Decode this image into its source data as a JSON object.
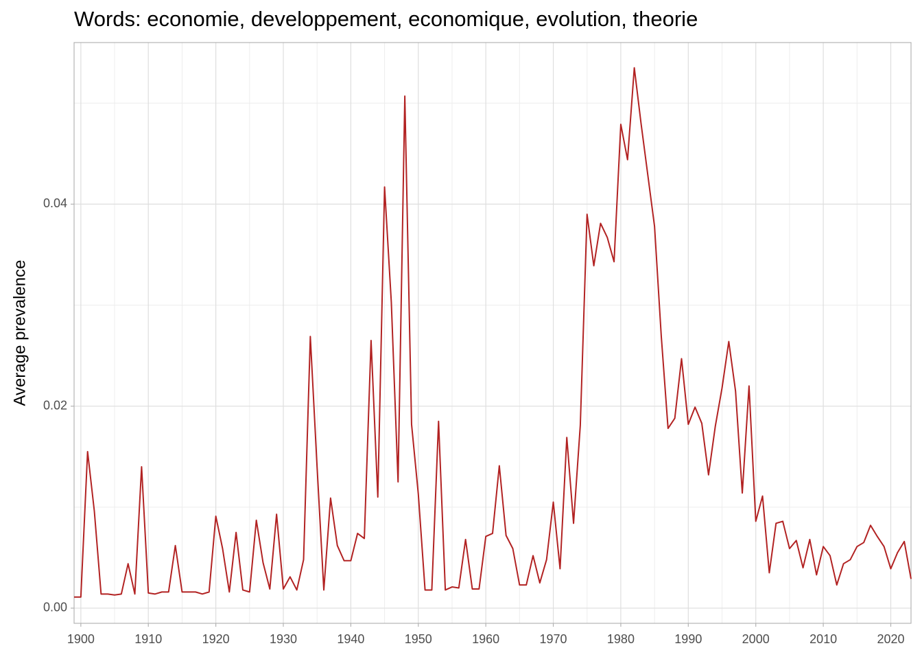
{
  "chart_data": {
    "type": "line",
    "title": "Words: economie, developpement, economique, evolution, theorie",
    "y_label": "Average prevalence",
    "x": [
      1899,
      1900,
      1901,
      1902,
      1903,
      1904,
      1905,
      1906,
      1907,
      1908,
      1909,
      1910,
      1911,
      1912,
      1913,
      1914,
      1915,
      1916,
      1917,
      1918,
      1919,
      1920,
      1921,
      1922,
      1923,
      1924,
      1925,
      1926,
      1927,
      1928,
      1929,
      1930,
      1931,
      1932,
      1933,
      1934,
      1935,
      1936,
      1937,
      1938,
      1939,
      1940,
      1941,
      1942,
      1943,
      1944,
      1945,
      1946,
      1947,
      1948,
      1949,
      1950,
      1951,
      1952,
      1953,
      1954,
      1955,
      1956,
      1957,
      1958,
      1959,
      1960,
      1961,
      1962,
      1963,
      1964,
      1965,
      1966,
      1967,
      1968,
      1969,
      1970,
      1971,
      1972,
      1973,
      1974,
      1975,
      1976,
      1977,
      1978,
      1979,
      1980,
      1981,
      1982,
      1983,
      1984,
      1985,
      1986,
      1987,
      1988,
      1989,
      1990,
      1991,
      1992,
      1993,
      1994,
      1995,
      1996,
      1997,
      1998,
      1999,
      2000,
      2001,
      2002,
      2003,
      2004,
      2005,
      2006,
      2007,
      2008,
      2009,
      2010,
      2011,
      2012,
      2013,
      2014,
      2015,
      2016,
      2017,
      2018,
      2019,
      2020,
      2021,
      2022,
      2023
    ],
    "series": [
      {
        "color": "#b22222",
        "values": [
          0.0011,
          0.0011,
          0.0155,
          0.0096,
          0.0014,
          0.0014,
          0.0013,
          0.0014,
          0.0044,
          0.0014,
          0.014,
          0.0015,
          0.0014,
          0.0016,
          0.0016,
          0.0062,
          0.0016,
          0.0016,
          0.0016,
          0.0014,
          0.0016,
          0.0091,
          0.0059,
          0.0016,
          0.0075,
          0.0018,
          0.0016,
          0.0087,
          0.0045,
          0.0019,
          0.0093,
          0.0019,
          0.0031,
          0.0018,
          0.0048,
          0.0269,
          0.014,
          0.0018,
          0.0109,
          0.0062,
          0.0047,
          0.0047,
          0.0074,
          0.0069,
          0.0265,
          0.011,
          0.0417,
          0.0303,
          0.0125,
          0.0507,
          0.0182,
          0.0113,
          0.0018,
          0.0018,
          0.0185,
          0.0018,
          0.0021,
          0.002,
          0.0068,
          0.0019,
          0.0019,
          0.0071,
          0.0074,
          0.0141,
          0.0072,
          0.0059,
          0.0023,
          0.0023,
          0.0052,
          0.0025,
          0.0048,
          0.0105,
          0.0039,
          0.0169,
          0.0084,
          0.0181,
          0.039,
          0.0339,
          0.0381,
          0.0367,
          0.0343,
          0.0479,
          0.0444,
          0.0535,
          0.048,
          0.0429,
          0.0378,
          0.0269,
          0.0178,
          0.0188,
          0.0247,
          0.0182,
          0.0199,
          0.0183,
          0.0132,
          0.018,
          0.0218,
          0.0264,
          0.0215,
          0.0114,
          0.022,
          0.0086,
          0.0111,
          0.0035,
          0.0084,
          0.0086,
          0.0059,
          0.0067,
          0.004,
          0.0068,
          0.0033,
          0.0061,
          0.0052,
          0.0023,
          0.0044,
          0.0048,
          0.0061,
          0.0065,
          0.0082,
          0.0071,
          0.0061,
          0.0039,
          0.0055,
          0.0066,
          0.0029
        ]
      }
    ],
    "xlim": [
      1899,
      2023
    ],
    "xticks": [
      1900,
      1910,
      1920,
      1930,
      1940,
      1950,
      1960,
      1970,
      1980,
      1990,
      2000,
      2010,
      2020
    ],
    "x_minor_ticks": [
      1905,
      1915,
      1925,
      1935,
      1945,
      1955,
      1965,
      1975,
      1985,
      1995,
      2005,
      2015
    ],
    "ylim": [
      -0.0015,
      0.056
    ],
    "yticks": [
      {
        "value": 0,
        "label": "0.00"
      },
      0.02,
      0.04
    ],
    "y_minor_ticks": [
      0.01,
      0.03,
      0.05
    ],
    "grid": true
  }
}
